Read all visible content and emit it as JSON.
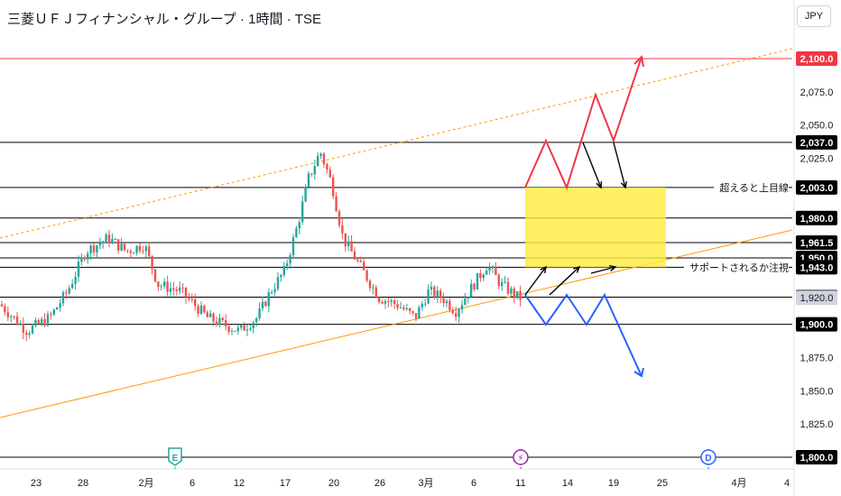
{
  "header": {
    "title": "三菱ＵＦＪフィナンシャル・グループ · 1時間 · TSE",
    "currency_button": "JPY"
  },
  "chart_data": {
    "type": "candlestick",
    "y_axis": {
      "range": [
        1790,
        2115
      ],
      "ticks": [
        "2,075.0",
        "2,050.0",
        "2,025.0",
        "1,875.0",
        "1,850.0",
        "1,825.0"
      ]
    },
    "x_axis": {
      "ticks": [
        "23",
        "28",
        "2月",
        "6",
        "12",
        "17",
        "20",
        "26",
        "3月",
        "6",
        "11",
        "14",
        "19",
        "25",
        "4月",
        "4"
      ]
    },
    "price_levels": [
      {
        "label": "2,100.0",
        "value": 2100,
        "color": "#f23645"
      },
      {
        "label": "2,037.0",
        "value": 2037,
        "color": "#000000"
      },
      {
        "label": "2,003.0",
        "value": 2003,
        "color": "#000000"
      },
      {
        "label": "1,980.0",
        "value": 1980,
        "color": "#000000"
      },
      {
        "label": "1,961.5",
        "value": 1961.5,
        "color": "#000000"
      },
      {
        "label": "1,950.0",
        "value": 1950,
        "color": "#000000"
      },
      {
        "label": "1,943.0",
        "value": 1943,
        "color": "#000000"
      },
      {
        "label": "1,920.5",
        "value": 1920.5,
        "color": "#000000"
      },
      {
        "label": "1,900.0",
        "value": 1900,
        "color": "#000000"
      },
      {
        "label": "1,800.0",
        "value": 1800,
        "color": "#000000"
      }
    ],
    "last_price": {
      "label": "1,920.0",
      "value": 1920
    },
    "annotations": [
      {
        "text": "超えると上目線",
        "value": 2003
      },
      {
        "text": "サポートされるか注視",
        "value": 1943
      }
    ],
    "target_zone": {
      "low": 1943,
      "high": 2003,
      "color": "#ffeb3b"
    },
    "events": [
      {
        "icon": "E",
        "color": "#26a69a"
      },
      {
        "icon": "⚡",
        "color": "#9c27b0"
      },
      {
        "icon": "D",
        "color": "#2962ff"
      }
    ],
    "colors": {
      "up": "#26a69a",
      "down": "#ef5350",
      "bull_path": "#f23645",
      "bear_path": "#2962ff",
      "channel": "#ff9800"
    }
  }
}
